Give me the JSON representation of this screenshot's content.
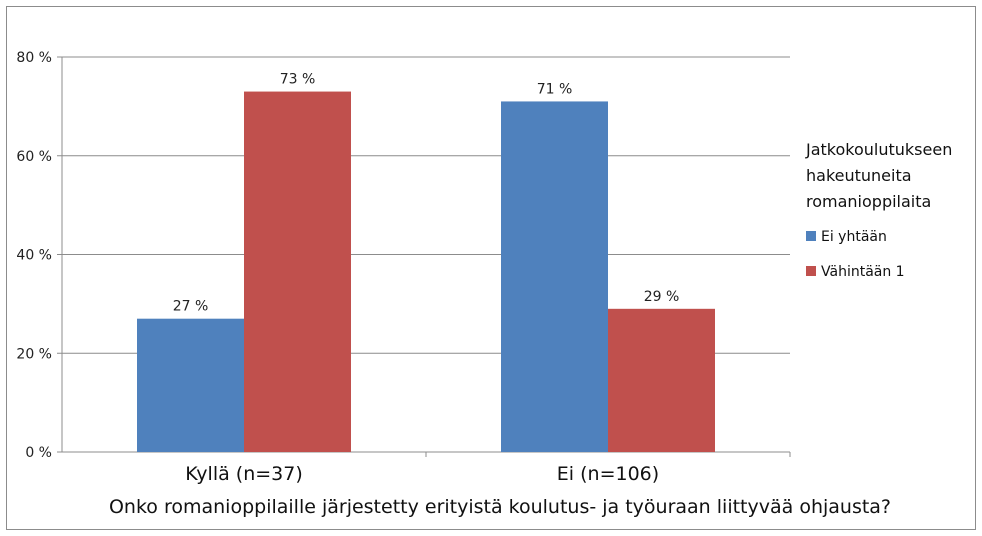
{
  "chart_data": {
    "type": "bar",
    "categories": [
      "Kyllä (n=37)",
      "Ei (n=106)"
    ],
    "series": [
      {
        "name": "Ei yhtään",
        "values": [
          27,
          71
        ],
        "labels": [
          "27 %",
          "71 %"
        ],
        "color": "#4f81bd"
      },
      {
        "name": "Vähintään 1",
        "values": [
          73,
          29
        ],
        "labels": [
          "73 %",
          "29 %"
        ],
        "color": "#c0504d"
      }
    ],
    "xlabel": "Onko romanioppilaille järjestetty erityistä koulutus- ja työuraan liittyvää ohjausta?",
    "ylabel": "",
    "ylim": [
      0,
      80
    ],
    "yticks": [
      "0 %",
      "20 %",
      "40 %",
      "60 %",
      "80 %"
    ],
    "grid": true,
    "legend": {
      "title_lines": [
        "Jatkokoulutukseen",
        "hakeutuneita",
        "romanioppilaita"
      ],
      "position": "right"
    }
  }
}
